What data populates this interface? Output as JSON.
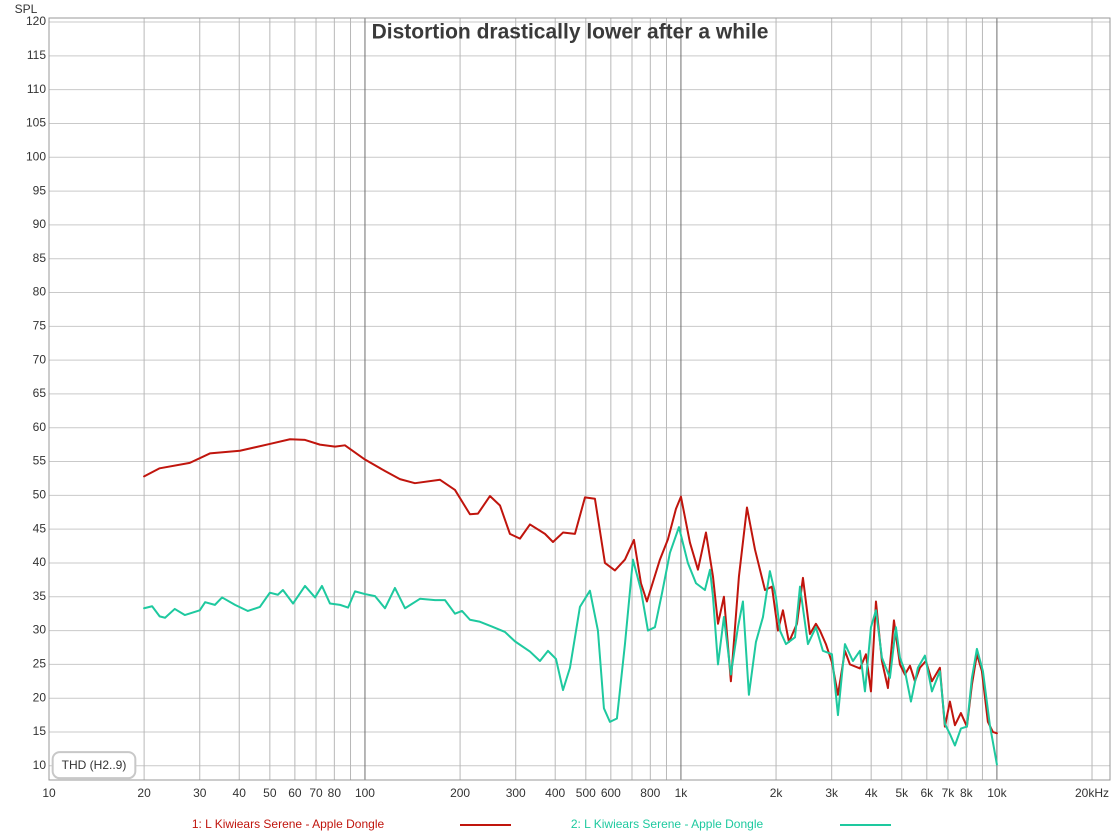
{
  "chart_data": {
    "type": "line",
    "title": "Distortion drastically lower after a while",
    "y_label": "SPL",
    "annotation": "THD (H2..9)",
    "x_scale": "log",
    "grid": true,
    "legend": "bottom",
    "xlim": [
      10,
      22800
    ],
    "ylim": [
      7.9,
      120.6
    ],
    "xticks": [
      10,
      20,
      30,
      40,
      50,
      60,
      70,
      80,
      100,
      200,
      300,
      400,
      500,
      600,
      800,
      {
        "value": 1000,
        "label": "1k"
      },
      {
        "value": 2000,
        "label": "2k"
      },
      {
        "value": 3000,
        "label": "3k"
      },
      {
        "value": 4000,
        "label": "4k"
      },
      {
        "value": 5000,
        "label": "5k"
      },
      {
        "value": 6000,
        "label": "6k"
      },
      {
        "value": 7000,
        "label": "7k"
      },
      {
        "value": 8000,
        "label": "8k"
      },
      {
        "value": 10000,
        "label": "10k"
      },
      {
        "value": 20000,
        "label": "20kHz"
      }
    ],
    "xticks_minor": [
      90,
      700,
      900,
      9000
    ],
    "yticks": [
      10,
      15,
      20,
      25,
      30,
      35,
      40,
      45,
      50,
      55,
      60,
      65,
      70,
      75,
      80,
      85,
      90,
      95,
      100,
      105,
      110,
      115,
      120
    ],
    "series": [
      {
        "name": "1: L Kiwiears Serene - Apple Dongle",
        "color": "#c0150d",
        "x": [
          20,
          22.4,
          27.9,
          32.3,
          40.2,
          50,
          57.9,
          64.6,
          72,
          80.4,
          86.4,
          100,
          115.7,
          129,
          143.9,
          172.8,
          192.7,
          214.9,
          227.9,
          248.6,
          267.5,
          287.6,
          309.4,
          332.8,
          371.3,
          393.6,
          423.4,
          461.9,
          496.9,
          534.3,
          574.7,
          618.1,
          665,
          710.1,
          747.2,
          780.4,
          858,
          909.8,
          964.3,
          1000,
          1068,
          1132,
          1200,
          1263,
          1310,
          1368,
          1439,
          1526,
          1618,
          1715,
          1845,
          1941,
          2028,
          2103,
          2197,
          2329,
          2433,
          2560,
          2674,
          2754,
          2876,
          3005,
          3140,
          3304,
          3426,
          3686,
          3851,
          3994,
          4142,
          4326,
          4520,
          4722,
          4932,
          5116,
          5307,
          5503,
          5706,
          5961,
          6229,
          6600,
          6845,
          7100,
          7364,
          7692,
          8037,
          8335,
          8644,
          8964,
          9364,
          9712,
          10000
        ],
        "values": [
          52.8,
          54,
          54.8,
          56.2,
          56.6,
          57.6,
          58.3,
          58.2,
          57.5,
          57.2,
          57.4,
          55.3,
          53.6,
          52.4,
          51.8,
          52.3,
          50.8,
          47.2,
          47.3,
          49.9,
          48.5,
          44.3,
          43.6,
          45.7,
          44.3,
          43.1,
          44.5,
          44.3,
          49.7,
          49.5,
          40,
          38.9,
          40.5,
          43.4,
          37,
          34.3,
          40.5,
          43.5,
          48,
          49.8,
          43,
          39,
          44.5,
          38,
          31,
          35,
          22.5,
          38,
          48.2,
          42,
          36,
          36.5,
          30,
          33,
          28.3,
          31,
          37.8,
          29.5,
          31,
          30,
          28,
          25.3,
          20.5,
          27,
          25,
          24.4,
          26.5,
          21,
          34.3,
          25.5,
          21.5,
          31.5,
          25,
          23.5,
          24.8,
          22.5,
          24.5,
          25.5,
          22.5,
          24.5,
          15.8,
          19.5,
          16,
          17.8,
          15.8,
          22,
          26.5,
          24,
          16.5,
          15,
          14.8
        ]
      },
      {
        "name": "2: L Kiwiears Serene - Apple Dongle",
        "color": "#1ec99f",
        "x": [
          20,
          21.2,
          22.4,
          23.3,
          25,
          26.9,
          30,
          31.2,
          33.5,
          35.3,
          38.8,
          42.6,
          46.5,
          50,
          53,
          55,
          59.2,
          64.6,
          69.5,
          73.1,
          77.5,
          83.4,
          88.4,
          93,
          100,
          107.6,
          115.7,
          124.4,
          133.9,
          149.3,
          166.6,
          179.2,
          192.7,
          202.8,
          214.9,
          231.2,
          252.3,
          277.3,
          298.4,
          332.8,
          357.9,
          379.5,
          402.3,
          423.4,
          445.5,
          479,
          515.2,
          546.1,
          570.5,
          596,
          627.2,
          665,
          704.9,
          747.2,
          786.2,
          827.3,
          870.9,
          923,
          985.6,
          1052,
          1116,
          1191,
          1236,
          1263,
          1310,
          1368,
          1439,
          1515,
          1571,
          1641,
          1727,
          1818,
          1912,
          1998,
          2058,
          2150,
          2296,
          2381,
          2523,
          2674,
          2814,
          3005,
          3140,
          3304,
          3502,
          3686,
          3823,
          3994,
          4142,
          4326,
          4586,
          4790,
          4932,
          5116,
          5345,
          5623,
          5918,
          6229,
          6600,
          6845,
          7100,
          7364,
          7692,
          8037,
          8335,
          8644,
          9031,
          9501,
          10000
        ],
        "values": [
          33.3,
          33.6,
          32.1,
          31.9,
          33.2,
          32.3,
          33,
          34.2,
          33.8,
          34.9,
          33.8,
          32.9,
          33.5,
          35.6,
          35.3,
          36,
          34,
          36.6,
          34.9,
          36.6,
          34,
          33.8,
          33.4,
          35.8,
          35.4,
          35.1,
          33.3,
          36.3,
          33.3,
          34.7,
          34.5,
          34.5,
          32.5,
          32.9,
          31.6,
          31.3,
          30.6,
          29.8,
          28.4,
          26.9,
          25.5,
          27,
          25.8,
          21.2,
          24.5,
          33.5,
          35.9,
          30,
          18.5,
          16.5,
          17,
          28,
          40.5,
          36,
          30,
          30.5,
          35.5,
          41.5,
          45.3,
          40,
          37,
          36,
          39,
          35,
          25,
          32,
          23.5,
          30.5,
          34.3,
          20.5,
          28.3,
          32,
          38.8,
          35,
          30,
          28,
          29,
          36.5,
          28,
          30.5,
          27,
          26.5,
          17.5,
          28,
          25.5,
          27,
          21,
          30.5,
          33,
          26,
          23,
          30.5,
          26,
          24,
          19.5,
          24.5,
          26.3,
          21,
          24,
          16.2,
          14.7,
          13,
          15.5,
          15.8,
          23,
          27.3,
          24,
          16,
          10.2
        ]
      }
    ]
  }
}
